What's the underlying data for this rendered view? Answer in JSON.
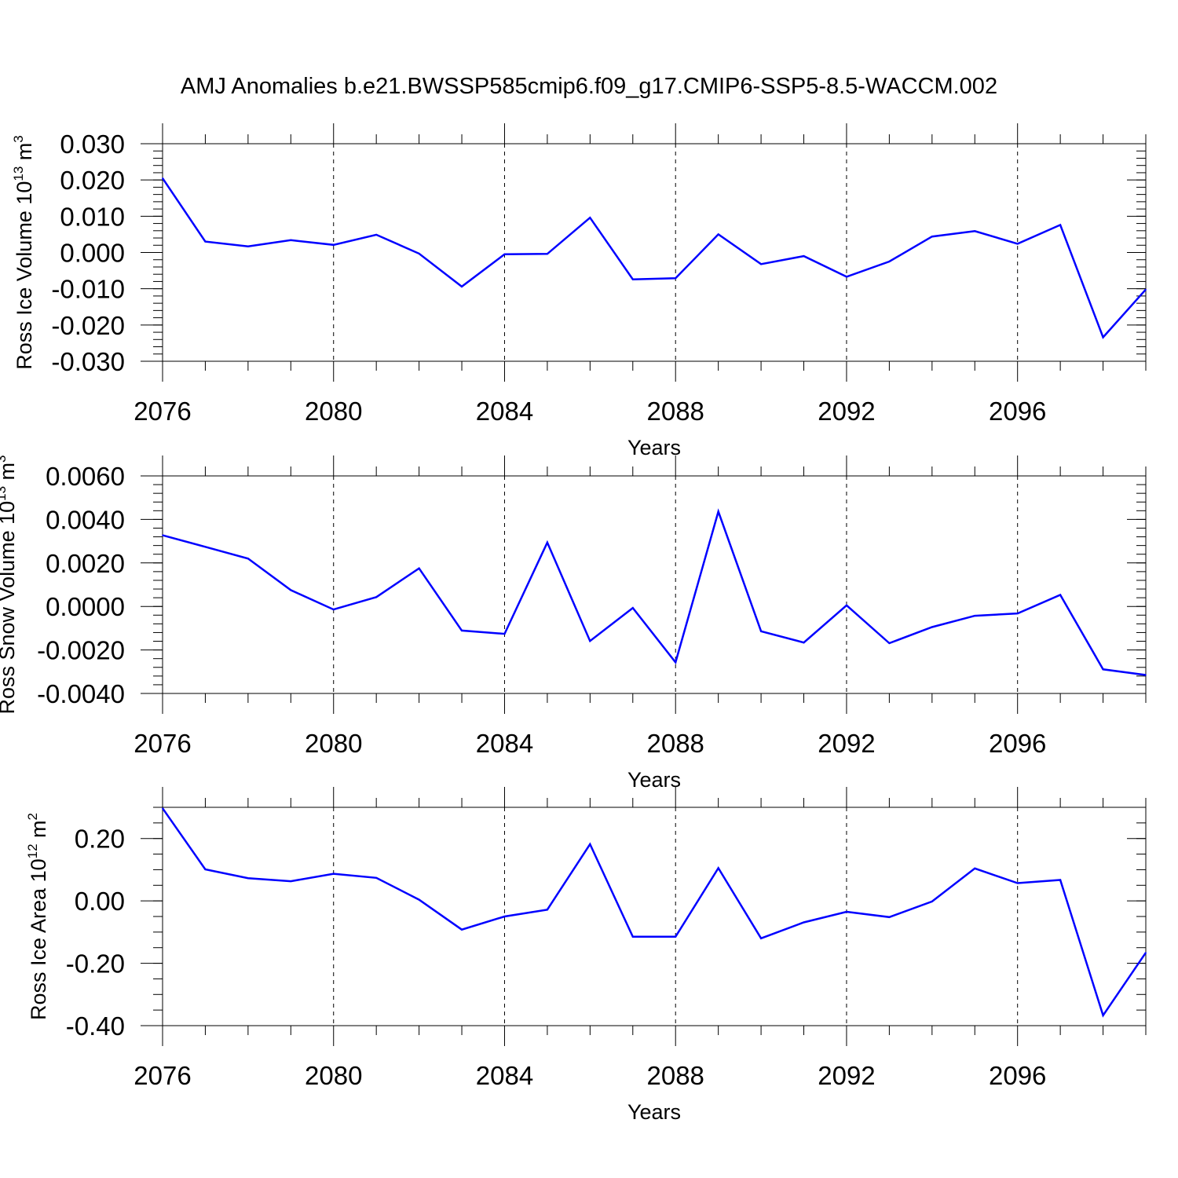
{
  "title": "AMJ Anomalies b.e21.BWSSP585cmip6.f09_g17.CMIP6-SSP5-8.5-WACCM.002",
  "line_color": "#0000ff",
  "chart_data": [
    {
      "type": "line",
      "ylabel": {
        "name": "Ross Ice Volume 10",
        "exp": "13",
        "unit": " m",
        "unit_exp": "3"
      },
      "xlabel": "Years",
      "xlim": [
        2076,
        2099
      ],
      "ylim": [
        -0.03,
        0.03
      ],
      "grid_x": true,
      "x_major_ticks": [
        2076,
        2080,
        2084,
        2088,
        2092,
        2096
      ],
      "x_tick_labels": [
        "2076",
        "2080",
        "2084",
        "2088",
        "2092",
        "2096"
      ],
      "y_ticks": [
        0.03,
        0.02,
        0.01,
        0.0,
        -0.01,
        -0.02,
        -0.03
      ],
      "y_tick_labels": [
        "0.030",
        "0.020",
        "0.010",
        "0.000",
        "-0.010",
        "-0.020",
        "-0.030"
      ],
      "y_minor_step": 0.002,
      "x": [
        2076,
        2077,
        2078,
        2079,
        2080,
        2081,
        2082,
        2083,
        2084,
        2085,
        2086,
        2087,
        2088,
        2089,
        2090,
        2091,
        2092,
        2093,
        2094,
        2095,
        2096,
        2097,
        2098,
        2099
      ],
      "values": [
        0.0205,
        0.003,
        0.0017,
        0.0034,
        0.0021,
        0.0049,
        -0.0003,
        -0.0094,
        -0.0005,
        -0.0004,
        0.0096,
        -0.0074,
        -0.0071,
        0.005,
        -0.0032,
        -0.001,
        -0.0067,
        -0.0025,
        0.0044,
        0.0059,
        0.0024,
        0.0076,
        -0.0234,
        -0.0102
      ]
    },
    {
      "type": "line",
      "ylabel": {
        "name": "Ross Snow Volume 10",
        "exp": "13",
        "unit": " m",
        "unit_exp": "3"
      },
      "xlabel": "Years",
      "xlim": [
        2076,
        2099
      ],
      "ylim": [
        -0.004,
        0.006
      ],
      "grid_x": true,
      "x_major_ticks": [
        2076,
        2080,
        2084,
        2088,
        2092,
        2096
      ],
      "x_tick_labels": [
        "2076",
        "2080",
        "2084",
        "2088",
        "2092",
        "2096"
      ],
      "y_ticks": [
        0.006,
        0.004,
        0.002,
        0.0,
        -0.002,
        -0.004
      ],
      "y_tick_labels": [
        "0.0060",
        "0.0040",
        "0.0020",
        "0.0000",
        "-0.0020",
        "-0.0040"
      ],
      "y_minor_step": 0.0004,
      "x": [
        2076,
        2077,
        2078,
        2079,
        2080,
        2081,
        2082,
        2083,
        2084,
        2085,
        2086,
        2087,
        2088,
        2089,
        2090,
        2091,
        2092,
        2093,
        2094,
        2095,
        2096,
        2097,
        2098,
        2099
      ],
      "values": [
        0.00327,
        0.00274,
        0.0022,
        0.00075,
        -0.00014,
        0.00043,
        0.00175,
        -0.00111,
        -0.00126,
        0.00294,
        -0.00159,
        -7e-05,
        -0.00257,
        0.00436,
        -0.00114,
        -0.00166,
        5e-05,
        -0.00169,
        -0.00095,
        -0.00043,
        -0.00032,
        0.00053,
        -0.00289,
        -0.00315
      ]
    },
    {
      "type": "line",
      "ylabel": {
        "name": "Ross Ice Area 10",
        "exp": "12",
        "unit": " m",
        "unit_exp": "2"
      },
      "xlabel": "Years",
      "xlim": [
        2076,
        2099
      ],
      "ylim": [
        -0.4,
        0.3
      ],
      "grid_x": true,
      "x_major_ticks": [
        2076,
        2080,
        2084,
        2088,
        2092,
        2096
      ],
      "x_tick_labels": [
        "2076",
        "2080",
        "2084",
        "2088",
        "2092",
        "2096"
      ],
      "y_ticks": [
        0.2,
        0.0,
        -0.2,
        -0.4
      ],
      "y_tick_labels": [
        "0.20",
        "0.00",
        "-0.20",
        "-0.40"
      ],
      "y_minor_step": 0.05,
      "x": [
        2076,
        2077,
        2078,
        2079,
        2080,
        2081,
        2082,
        2083,
        2084,
        2085,
        2086,
        2087,
        2088,
        2089,
        2090,
        2091,
        2092,
        2093,
        2094,
        2095,
        2096,
        2097,
        2098,
        2099
      ],
      "values": [
        0.297,
        0.101,
        0.073,
        0.063,
        0.087,
        0.074,
        0.004,
        -0.092,
        -0.05,
        -0.028,
        0.182,
        -0.115,
        -0.115,
        0.105,
        -0.12,
        -0.069,
        -0.035,
        -0.052,
        -0.002,
        0.104,
        0.057,
        0.067,
        -0.367,
        -0.166
      ]
    }
  ]
}
